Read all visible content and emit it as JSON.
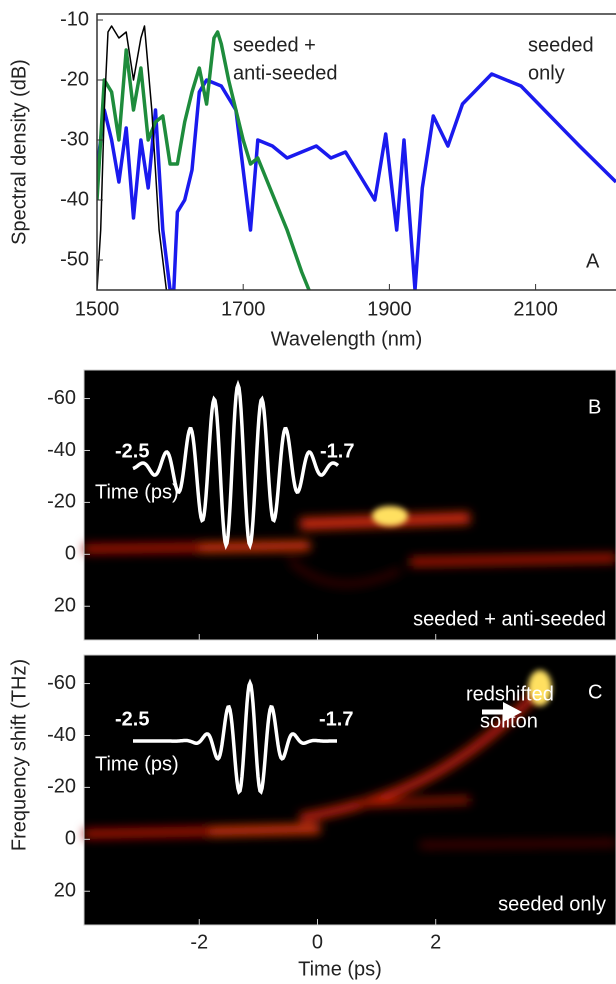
{
  "chart_data": [
    {
      "type": "line",
      "xlabel": "Wavelength (nm)",
      "ylabel": "Spectral density (dB)",
      "panel_label": "A",
      "xlim": [
        1500,
        2210
      ],
      "ylim": [
        -55,
        -9
      ],
      "xticks": [
        1500,
        1700,
        1900,
        2100
      ],
      "yticks": [
        -50,
        -40,
        -30,
        -20,
        -10
      ],
      "annotations": [
        {
          "lines": [
            "seeded +",
            "anti-seeded"
          ]
        },
        {
          "lines": [
            "seeded",
            "only"
          ]
        }
      ],
      "series": [
        {
          "color": "#1a1aee",
          "x": [
            1500,
            1510,
            1520,
            1530,
            1540,
            1550,
            1560,
            1570,
            1580,
            1590,
            1600,
            1605,
            1610,
            1620,
            1630,
            1640,
            1650,
            1670,
            1690,
            1700,
            1710,
            1720,
            1740,
            1760,
            1780,
            1800,
            1820,
            1840,
            1860,
            1880,
            1895,
            1910,
            1920,
            1935,
            1945,
            1960,
            1980,
            2000,
            2040,
            2080,
            2120,
            2160,
            2210
          ],
          "values": [
            -35,
            -25,
            -30,
            -37,
            -28,
            -43,
            -30,
            -38,
            -25,
            -45,
            -55,
            -55,
            -42,
            -40,
            -35,
            -22,
            -20,
            -21,
            -25,
            -35,
            -45,
            -30,
            -31,
            -33,
            -32,
            -31,
            -33,
            -32,
            -36,
            -40,
            -29,
            -45,
            -30,
            -55,
            -38,
            -26,
            -31,
            -24,
            -19,
            -21,
            -26,
            -31,
            -37
          ]
        },
        {
          "color": "#1e8c3c",
          "x": [
            1500,
            1510,
            1520,
            1530,
            1540,
            1550,
            1560,
            1570,
            1580,
            1590,
            1600,
            1610,
            1620,
            1630,
            1640,
            1650,
            1660,
            1665,
            1670,
            1680,
            1690,
            1700,
            1710,
            1720,
            1740,
            1760,
            1780,
            1790
          ],
          "values": [
            -40,
            -20,
            -22,
            -30,
            -15,
            -25,
            -18,
            -30,
            -27,
            -26,
            -34,
            -34,
            -27,
            -22,
            -18,
            -24,
            -13,
            -12,
            -14,
            -20,
            -25,
            -30,
            -34,
            -33,
            -39,
            -45,
            -52,
            -55
          ]
        },
        {
          "color": "#000000",
          "x": [
            1500,
            1505,
            1510,
            1515,
            1520,
            1530,
            1540,
            1550,
            1560,
            1565,
            1575,
            1585,
            1595
          ],
          "values": [
            -55,
            -45,
            -25,
            -12,
            -11,
            -13,
            -12,
            -20,
            -13,
            -11,
            -25,
            -45,
            -55
          ]
        }
      ]
    },
    {
      "type": "heatmap",
      "panel_label": "B",
      "xlim": [
        -3.95,
        5.05
      ],
      "ylim": [
        -71,
        33
      ],
      "xticks": [
        -2,
        0,
        2
      ],
      "yticks": [
        -60,
        -40,
        -20,
        0,
        20
      ],
      "annotation": "seeded + anti-seeded",
      "inset": {
        "start": "-2.5",
        "end": "-1.7",
        "label": "Time (ps)"
      }
    },
    {
      "type": "heatmap",
      "panel_label": "C",
      "xlabel": "Time (ps)",
      "ylabel": "Frequency shift (THz)",
      "xlim": [
        -3.95,
        5.05
      ],
      "ylim": [
        -71,
        33
      ],
      "xticks": [
        -2,
        0,
        2
      ],
      "yticks": [
        -60,
        -40,
        -20,
        0,
        20
      ],
      "annotation": "seeded only",
      "callout": [
        "redshifted",
        "soliton"
      ],
      "inset": {
        "start": "-2.5",
        "end": "-1.7",
        "label": "Time (ps)"
      }
    }
  ]
}
